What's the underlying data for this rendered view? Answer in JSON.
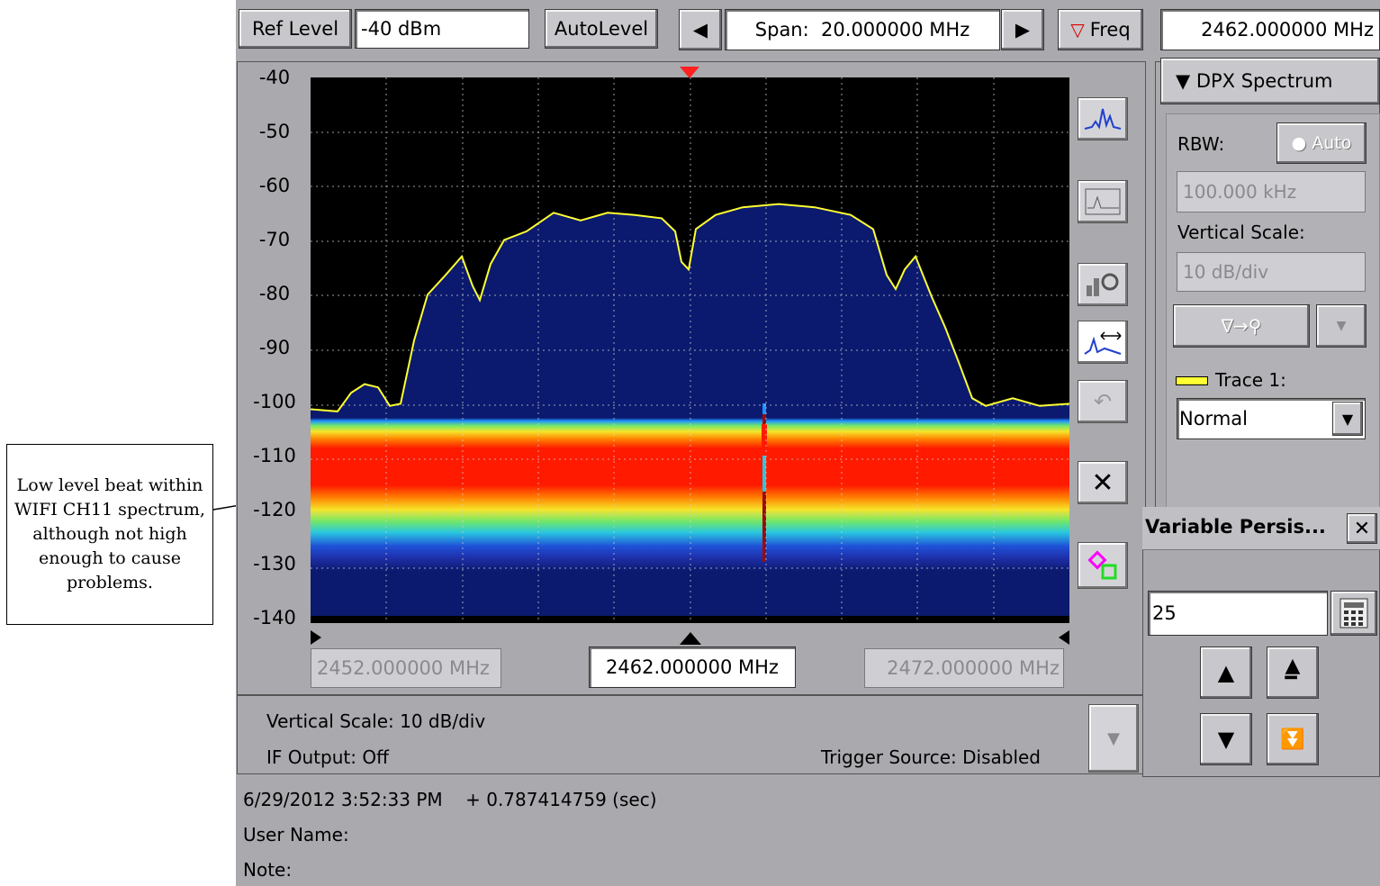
{
  "toolbar": {
    "ref_level_label": "Ref Level",
    "ref_level_value": "-40 dBm",
    "autolevel_label": "AutoLevel",
    "span_text": "Span:  20.000000 MHz",
    "freq_label": "Freq",
    "freq_value": "2462.000000 MHz"
  },
  "plot": {
    "y_labels": [
      "-40",
      "-50",
      "-60",
      "-70",
      "-80",
      "-90",
      "-100",
      "-110",
      "-120",
      "-130",
      "-140"
    ],
    "start_freq": "2452.000000 MHz",
    "center_freq": "2462.000000 MHz",
    "stop_freq": "2472.000000 MHz"
  },
  "status": {
    "vertical_scale": "Vertical Scale: 10 dB/div",
    "if_output": "IF Output: Off",
    "trigger_source": "Trigger Source: Disabled"
  },
  "footer": {
    "timestamp": "6/29/2012 3:52:33 PM    + 0.787414759 (sec)",
    "user_name": "User Name:",
    "note": "Note:"
  },
  "side_panel": {
    "title": "▼ DPX Spectrum",
    "rbw_label": "RBW:",
    "auto_label": "● Auto",
    "rbw_value": "100.000 kHz",
    "vscale_label": "Vertical Scale:",
    "vscale_value": "10 dB/div",
    "marker_btn": "∇→⚲",
    "trace_label": "Trace 1:",
    "trace_mode": "Normal"
  },
  "persistence": {
    "title": "Variable Persis...",
    "value": "25"
  },
  "annotation": {
    "text": "Low level beat within WIFI CH11 spectrum, although not high enough to cause problems."
  },
  "colors": {
    "trace": "#ffff33",
    "background_fill": "#0b1a6e",
    "band_red": "#ff1a00",
    "panel_gray": "#a9a9ae"
  }
}
